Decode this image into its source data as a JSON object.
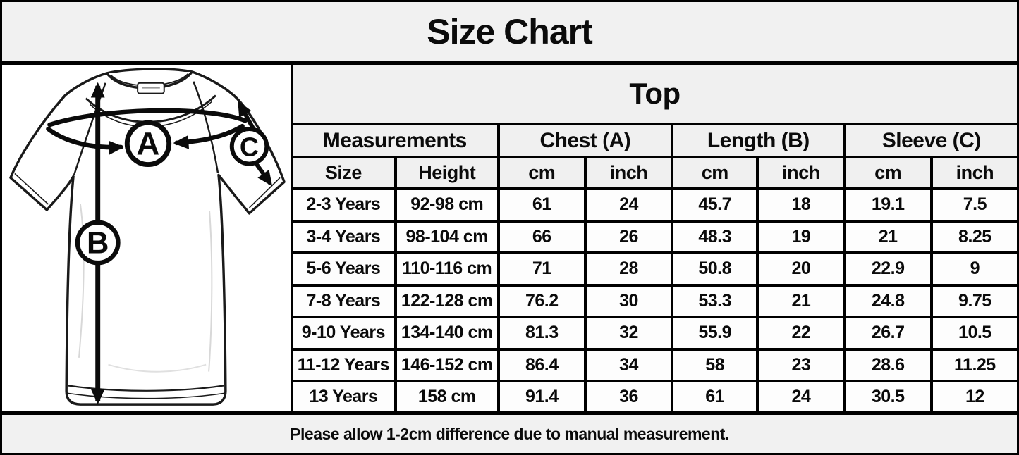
{
  "title": "Size Chart",
  "diagram": {
    "name": "tshirt-measurement-diagram",
    "label_a": "A",
    "label_b": "B",
    "label_c": "C"
  },
  "table": {
    "title": "Top",
    "group_headers": [
      {
        "label": "Measurements",
        "span": 2
      },
      {
        "label": "Chest (A)",
        "span": 2
      },
      {
        "label": "Length (B)",
        "span": 2
      },
      {
        "label": "Sleeve (C)",
        "span": 2
      }
    ],
    "sub_headers": [
      "Size",
      "Height",
      "cm",
      "inch",
      "cm",
      "inch",
      "cm",
      "inch"
    ],
    "rows": [
      [
        "2-3 Years",
        "92-98 cm",
        "61",
        "24",
        "45.7",
        "18",
        "19.1",
        "7.5"
      ],
      [
        "3-4 Years",
        "98-104 cm",
        "66",
        "26",
        "48.3",
        "19",
        "21",
        "8.25"
      ],
      [
        "5-6 Years",
        "110-116 cm",
        "71",
        "28",
        "50.8",
        "20",
        "22.9",
        "9"
      ],
      [
        "7-8 Years",
        "122-128 cm",
        "76.2",
        "30",
        "53.3",
        "21",
        "24.8",
        "9.75"
      ],
      [
        "9-10 Years",
        "134-140 cm",
        "81.3",
        "32",
        "55.9",
        "22",
        "26.7",
        "10.5"
      ],
      [
        "11-12 Years",
        "146-152 cm",
        "86.4",
        "34",
        "58",
        "23",
        "28.6",
        "11.25"
      ],
      [
        "13 Years",
        "158 cm",
        "91.4",
        "36",
        "61",
        "24",
        "30.5",
        "12"
      ]
    ]
  },
  "footer_note": "Please allow 1-2cm difference due to manual measurement.",
  "colors": {
    "border": "#000000",
    "panel_bg": "#ffffff",
    "header_bg": "#f0f0f0",
    "cell_bg": "#fdfdfd",
    "frame_bg": "#f1f1f1",
    "text": "#0b0b0b"
  }
}
